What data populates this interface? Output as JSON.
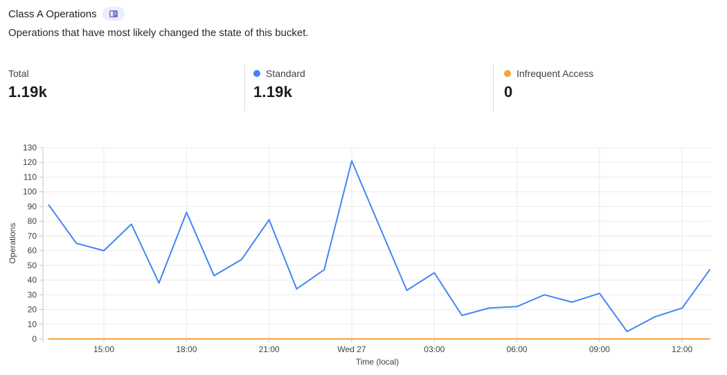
{
  "header": {
    "title": "Class A Operations",
    "badge_icon": "book-icon",
    "subtitle": "Operations that have most likely changed the state of this bucket."
  },
  "stats": [
    {
      "label": "Total",
      "value": "1.19k"
    },
    {
      "label": "Standard",
      "value": "1.19k",
      "dot_color": "#4285F4"
    },
    {
      "label": "Infrequent Access",
      "value": "0",
      "dot_color": "#F2A43D"
    }
  ],
  "chart_data": {
    "type": "line",
    "title": "",
    "xlabel": "Time (local)",
    "ylabel": "Operations",
    "ylim": [
      0,
      130
    ],
    "grid": true,
    "legend_position": "top-stats-row",
    "y_ticks": [
      0,
      10,
      20,
      30,
      40,
      50,
      60,
      70,
      80,
      90,
      100,
      110,
      120,
      130
    ],
    "x": [
      "13:00",
      "14:00",
      "15:00",
      "16:00",
      "17:00",
      "18:00",
      "19:00",
      "20:00",
      "21:00",
      "22:00",
      "23:00",
      "Wed 27 00:00",
      "01:00",
      "02:00",
      "03:00",
      "04:00",
      "05:00",
      "06:00",
      "07:00",
      "08:00",
      "09:00",
      "10:00",
      "11:00",
      "12:00",
      "13:00"
    ],
    "x_tick_labels": [
      {
        "label": "15:00",
        "index": 2
      },
      {
        "label": "18:00",
        "index": 5
      },
      {
        "label": "21:00",
        "index": 8
      },
      {
        "label": "Wed 27",
        "index": 11
      },
      {
        "label": "03:00",
        "index": 14
      },
      {
        "label": "06:00",
        "index": 17
      },
      {
        "label": "09:00",
        "index": 20
      },
      {
        "label": "12:00",
        "index": 23
      }
    ],
    "series": [
      {
        "name": "Standard",
        "color": "#4285F4",
        "values": [
          91,
          65,
          60,
          78,
          38,
          86,
          43,
          54,
          81,
          34,
          47,
          121,
          77,
          33,
          45,
          16,
          21,
          22,
          30,
          25,
          31,
          5,
          15,
          21,
          47
        ]
      },
      {
        "name": "Infrequent Access",
        "color": "#F2A43D",
        "values": [
          0,
          0,
          0,
          0,
          0,
          0,
          0,
          0,
          0,
          0,
          0,
          0,
          0,
          0,
          0,
          0,
          0,
          0,
          0,
          0,
          0,
          0,
          0,
          0,
          0
        ]
      }
    ]
  }
}
